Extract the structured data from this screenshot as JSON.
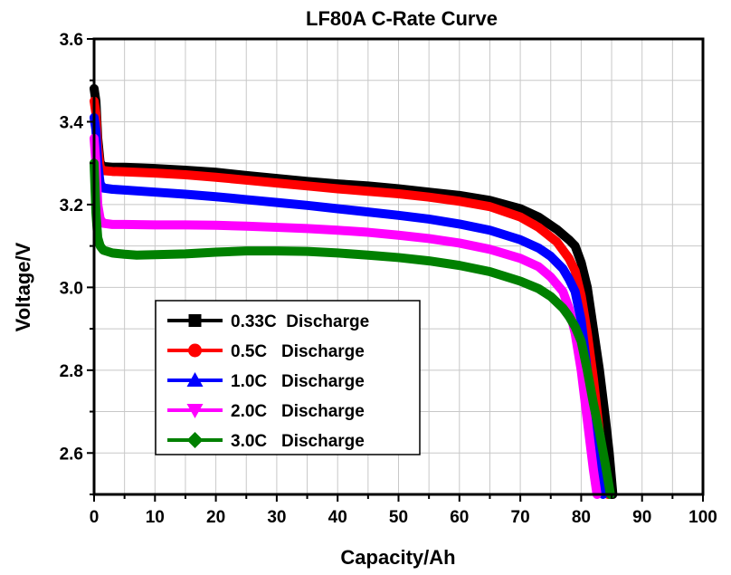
{
  "chart_data": {
    "type": "line",
    "title": "LF80A C-Rate Curve",
    "xlabel": "Capacity/Ah",
    "ylabel": "Voltage/V",
    "xlim": [
      0,
      100
    ],
    "ylim": [
      2.5,
      3.6
    ],
    "xticks": [
      "0",
      "10",
      "20",
      "30",
      "40",
      "50",
      "60",
      "70",
      "80",
      "90",
      "100"
    ],
    "yticks": [
      "2.6",
      "2.8",
      "3.0",
      "3.2",
      "3.4",
      "3.6"
    ],
    "grid": true,
    "legend_position": "bottom-left",
    "series": [
      {
        "name": "0.33C  Discharge",
        "color": "#000000",
        "marker": "square",
        "points": [
          [
            0,
            3.48
          ],
          [
            0.3,
            3.45
          ],
          [
            0.6,
            3.36
          ],
          [
            1,
            3.3
          ],
          [
            1.5,
            3.292
          ],
          [
            3,
            3.29
          ],
          [
            5,
            3.29
          ],
          [
            10,
            3.287
          ],
          [
            15,
            3.283
          ],
          [
            20,
            3.278
          ],
          [
            25,
            3.27
          ],
          [
            30,
            3.263
          ],
          [
            35,
            3.256
          ],
          [
            40,
            3.25
          ],
          [
            45,
            3.245
          ],
          [
            50,
            3.238
          ],
          [
            55,
            3.23
          ],
          [
            60,
            3.222
          ],
          [
            65,
            3.21
          ],
          [
            70,
            3.19
          ],
          [
            73,
            3.17
          ],
          [
            76,
            3.14
          ],
          [
            78,
            3.115
          ],
          [
            79,
            3.1
          ],
          [
            80,
            3.06
          ],
          [
            81,
            3.0
          ],
          [
            82,
            2.9
          ],
          [
            83,
            2.8
          ],
          [
            84,
            2.68
          ],
          [
            84.6,
            2.6
          ],
          [
            85.2,
            2.5
          ]
        ]
      },
      {
        "name": "0.5C   Discharge",
        "color": "#ff0000",
        "marker": "circle",
        "points": [
          [
            0,
            3.45
          ],
          [
            0.3,
            3.42
          ],
          [
            0.6,
            3.34
          ],
          [
            1,
            3.29
          ],
          [
            1.5,
            3.282
          ],
          [
            3,
            3.28
          ],
          [
            5,
            3.279
          ],
          [
            10,
            3.276
          ],
          [
            15,
            3.272
          ],
          [
            20,
            3.266
          ],
          [
            25,
            3.259
          ],
          [
            30,
            3.252
          ],
          [
            35,
            3.245
          ],
          [
            40,
            3.238
          ],
          [
            45,
            3.232
          ],
          [
            50,
            3.226
          ],
          [
            55,
            3.218
          ],
          [
            60,
            3.208
          ],
          [
            65,
            3.195
          ],
          [
            70,
            3.17
          ],
          [
            73,
            3.145
          ],
          [
            76,
            3.11
          ],
          [
            78,
            3.07
          ],
          [
            79,
            3.04
          ],
          [
            80,
            2.98
          ],
          [
            81,
            2.89
          ],
          [
            82,
            2.78
          ],
          [
            83,
            2.65
          ],
          [
            84,
            2.55
          ],
          [
            84.4,
            2.5
          ]
        ]
      },
      {
        "name": "1.0C   Discharge",
        "color": "#0000ff",
        "marker": "triangle-up",
        "points": [
          [
            0,
            3.41
          ],
          [
            0.3,
            3.38
          ],
          [
            0.6,
            3.3
          ],
          [
            1,
            3.25
          ],
          [
            1.5,
            3.24
          ],
          [
            3,
            3.237
          ],
          [
            5,
            3.235
          ],
          [
            10,
            3.23
          ],
          [
            15,
            3.225
          ],
          [
            20,
            3.219
          ],
          [
            25,
            3.212
          ],
          [
            30,
            3.205
          ],
          [
            35,
            3.198
          ],
          [
            40,
            3.19
          ],
          [
            45,
            3.182
          ],
          [
            50,
            3.174
          ],
          [
            55,
            3.165
          ],
          [
            60,
            3.153
          ],
          [
            65,
            3.138
          ],
          [
            70,
            3.115
          ],
          [
            73,
            3.095
          ],
          [
            75,
            3.075
          ],
          [
            77,
            3.045
          ],
          [
            78,
            3.02
          ],
          [
            79,
            2.99
          ],
          [
            80,
            2.92
          ],
          [
            81,
            2.8
          ],
          [
            82,
            2.67
          ],
          [
            83,
            2.55
          ],
          [
            83.6,
            2.5
          ]
        ]
      },
      {
        "name": "2.0C   Discharge",
        "color": "#ff00ff",
        "marker": "triangle-down",
        "points": [
          [
            0,
            3.36
          ],
          [
            0.3,
            3.3
          ],
          [
            0.6,
            3.2
          ],
          [
            1,
            3.165
          ],
          [
            1.5,
            3.155
          ],
          [
            3,
            3.152
          ],
          [
            5,
            3.152
          ],
          [
            10,
            3.151
          ],
          [
            15,
            3.151
          ],
          [
            20,
            3.15
          ],
          [
            25,
            3.148
          ],
          [
            30,
            3.145
          ],
          [
            35,
            3.142
          ],
          [
            40,
            3.138
          ],
          [
            45,
            3.133
          ],
          [
            50,
            3.126
          ],
          [
            55,
            3.118
          ],
          [
            60,
            3.107
          ],
          [
            65,
            3.092
          ],
          [
            70,
            3.07
          ],
          [
            73,
            3.05
          ],
          [
            75,
            3.025
          ],
          [
            77,
            2.99
          ],
          [
            78,
            2.95
          ],
          [
            79,
            2.89
          ],
          [
            80,
            2.8
          ],
          [
            81,
            2.68
          ],
          [
            82,
            2.56
          ],
          [
            82.6,
            2.5
          ]
        ]
      },
      {
        "name": "3.0C   Discharge",
        "color": "#008000",
        "marker": "diamond",
        "points": [
          [
            0,
            3.3
          ],
          [
            0.3,
            3.18
          ],
          [
            0.6,
            3.12
          ],
          [
            1,
            3.1
          ],
          [
            1.5,
            3.09
          ],
          [
            3,
            3.083
          ],
          [
            5,
            3.08
          ],
          [
            7,
            3.078
          ],
          [
            10,
            3.079
          ],
          [
            15,
            3.081
          ],
          [
            20,
            3.085
          ],
          [
            25,
            3.088
          ],
          [
            30,
            3.088
          ],
          [
            35,
            3.087
          ],
          [
            40,
            3.083
          ],
          [
            45,
            3.078
          ],
          [
            50,
            3.072
          ],
          [
            55,
            3.064
          ],
          [
            60,
            3.053
          ],
          [
            65,
            3.038
          ],
          [
            70,
            3.015
          ],
          [
            73,
            2.997
          ],
          [
            75,
            2.978
          ],
          [
            77,
            2.95
          ],
          [
            78,
            2.93
          ],
          [
            79,
            2.905
          ],
          [
            80,
            2.87
          ],
          [
            81,
            2.8
          ],
          [
            82,
            2.72
          ],
          [
            83,
            2.65
          ],
          [
            84,
            2.57
          ],
          [
            84.8,
            2.5
          ]
        ]
      }
    ]
  }
}
